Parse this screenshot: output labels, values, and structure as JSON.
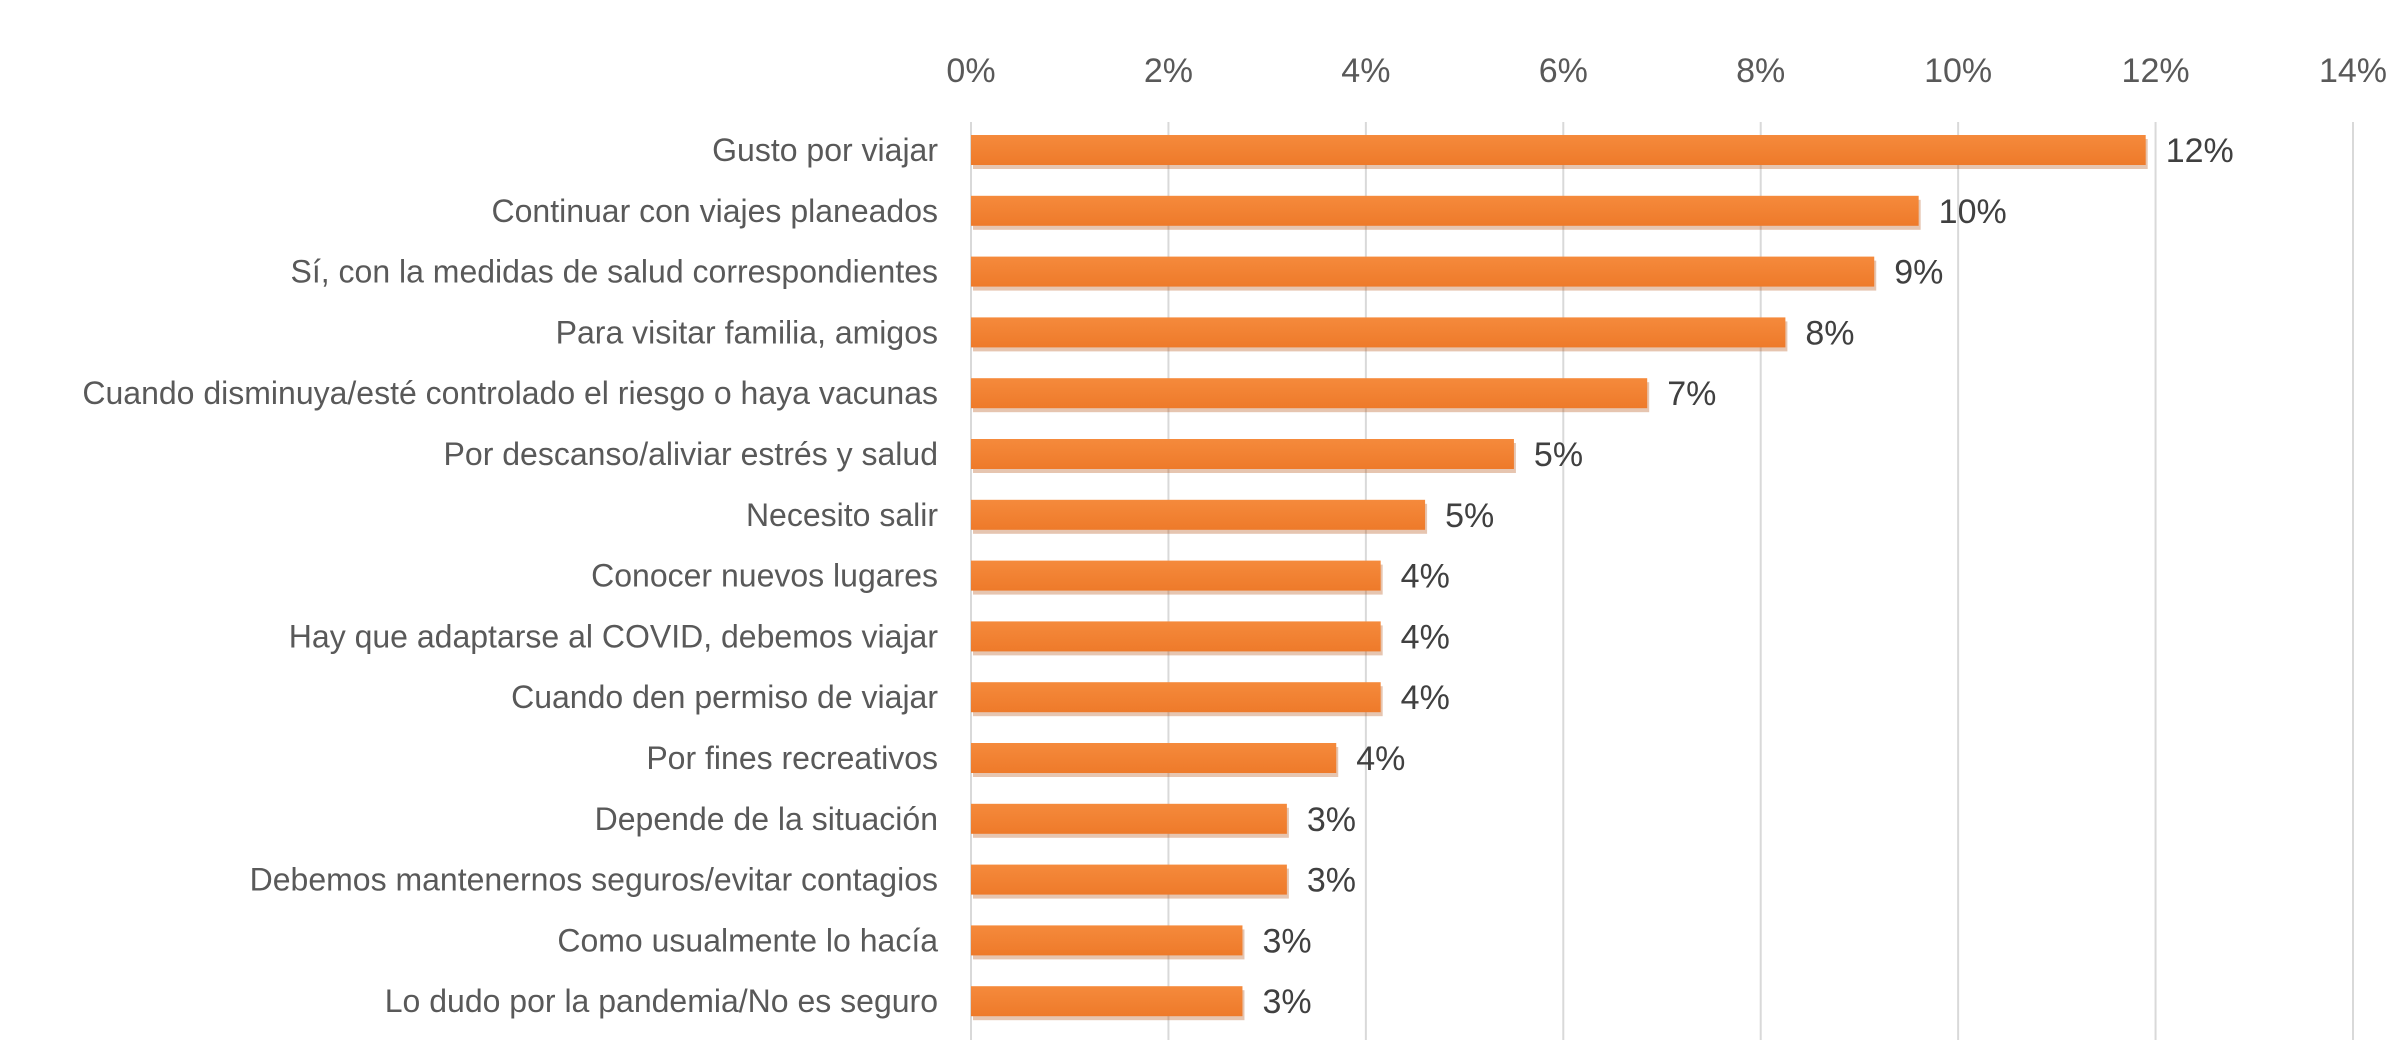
{
  "chart_data": {
    "type": "bar",
    "orientation": "horizontal",
    "title": "",
    "xlabel": "",
    "ylabel": "",
    "xlim": [
      0,
      14
    ],
    "x_ticks": [
      0,
      2,
      4,
      6,
      8,
      10,
      12,
      14
    ],
    "x_tick_labels": [
      "0%",
      "2%",
      "4%",
      "6%",
      "8%",
      "10%",
      "12%",
      "14%"
    ],
    "axis_position": "top",
    "grid": true,
    "legend": "none",
    "bar_color": "#F07F2F",
    "bar_shadow_color": "#B85A1E",
    "categories": [
      "Gusto por viajar",
      "Continuar con viajes planeados",
      "Sí, con la medidas de salud correspondientes",
      "Para visitar familia, amigos",
      "Cuando disminuya/esté controlado el riesgo o haya vacunas",
      "Por descanso/aliviar estrés y salud",
      "Necesito salir",
      "Conocer nuevos lugares",
      "Hay que adaptarse al COVID, debemos viajar",
      "Cuando den permiso de viajar",
      "Por fines recreativos",
      "Depende de la situación",
      "Debemos mantenernos seguros/evitar contagios",
      "Como usualmente lo hacía",
      "Lo dudo por la pandemia/No es seguro"
    ],
    "values": [
      11.9,
      9.6,
      9.15,
      8.25,
      6.85,
      5.5,
      4.6,
      4.15,
      4.15,
      4.15,
      3.7,
      3.2,
      3.2,
      2.75,
      2.75
    ],
    "data_labels": [
      "12%",
      "10%",
      "9%",
      "8%",
      "7%",
      "5%",
      "5%",
      "4%",
      "4%",
      "4%",
      "4%",
      "3%",
      "3%",
      "3%",
      "3%"
    ]
  }
}
